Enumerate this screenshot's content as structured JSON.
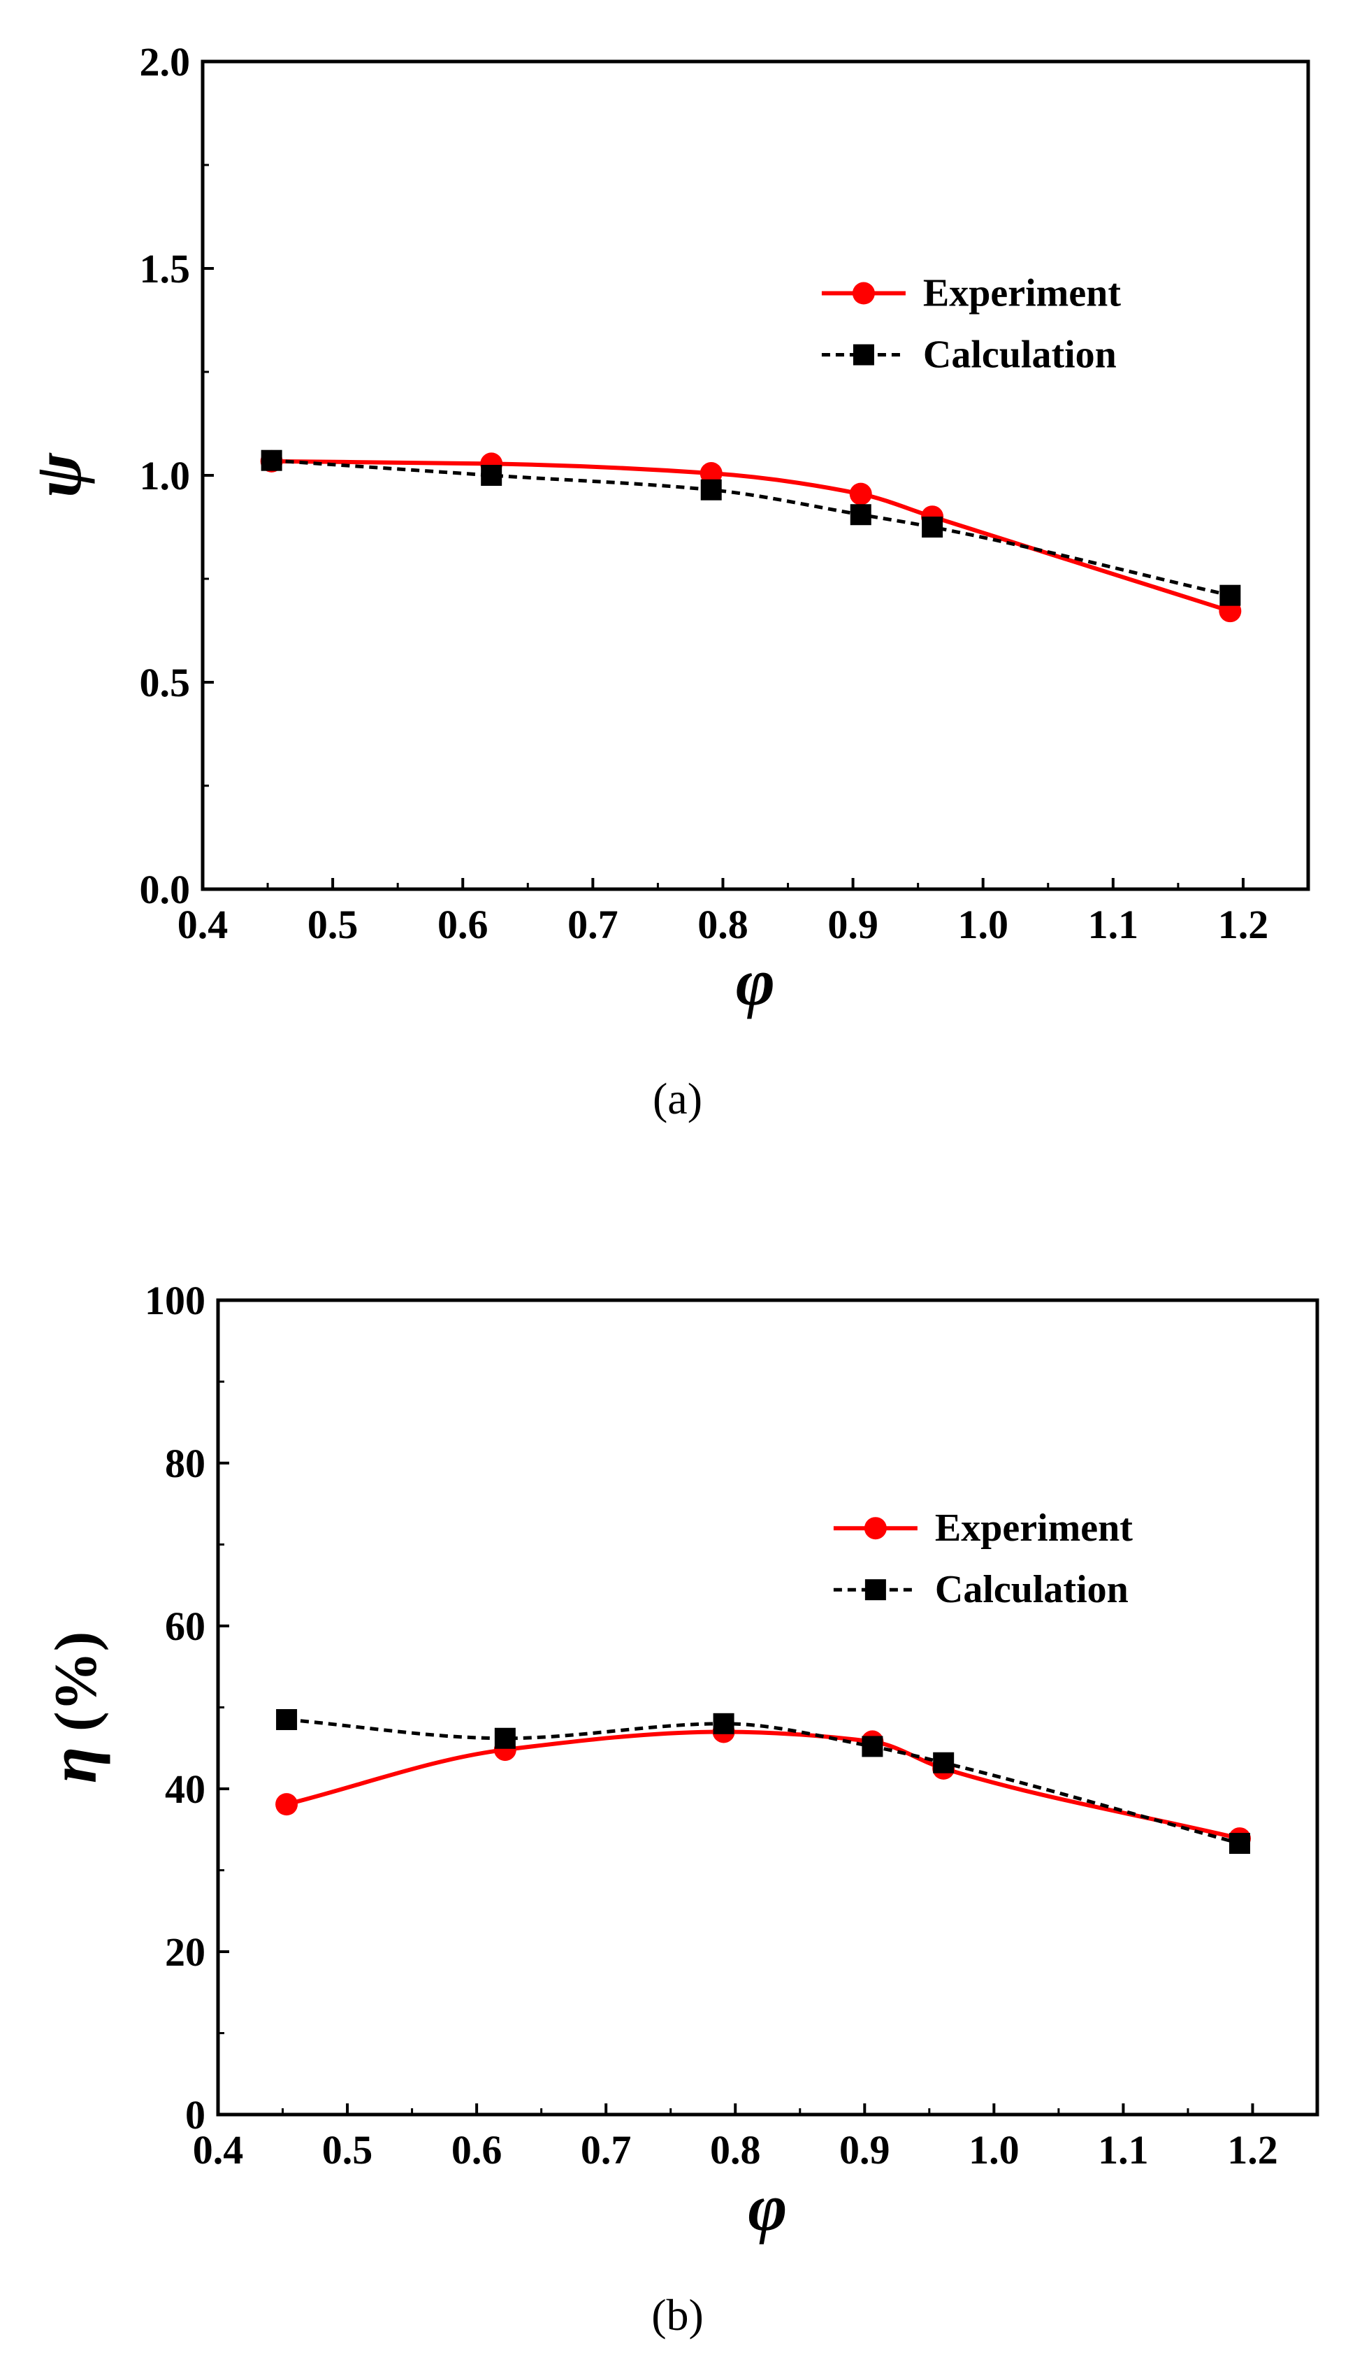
{
  "chart_data": [
    {
      "type": "line",
      "panel": "a",
      "caption": "(a)",
      "title": "",
      "xlabel": "φ",
      "ylabel": "ψ",
      "ylabel_unit": "",
      "xlim": [
        0.4,
        1.25
      ],
      "ylim": [
        0.0,
        2.0
      ],
      "xticks": [
        "0.4",
        "0.5",
        "0.6",
        "0.7",
        "0.8",
        "0.9",
        "1.0",
        "1.1",
        "1.2"
      ],
      "yticks": [
        "0.0",
        "0.5",
        "1.0",
        "1.5",
        "2.0"
      ],
      "legend_position": "upper-right",
      "series": [
        {
          "name": "Experiment",
          "color": "#ff0000",
          "marker": "circle",
          "line": "solid",
          "x": [
            0.453,
            0.622,
            0.791,
            0.906,
            0.961,
            1.19
          ],
          "y": [
            1.034,
            1.028,
            1.005,
            0.955,
            0.9,
            0.672
          ]
        },
        {
          "name": "Calculation",
          "color": "#000000",
          "marker": "square",
          "line": "dashed",
          "x": [
            0.453,
            0.622,
            0.791,
            0.906,
            0.961,
            1.19
          ],
          "y": [
            1.036,
            1.0,
            0.965,
            0.905,
            0.875,
            0.71
          ]
        }
      ]
    },
    {
      "type": "line",
      "panel": "b",
      "caption": "(b)",
      "title": "",
      "xlabel": "φ",
      "ylabel": "η",
      "ylabel_unit": "(%)",
      "xlim": [
        0.4,
        1.25
      ],
      "ylim": [
        0,
        100
      ],
      "xticks": [
        "0.4",
        "0.5",
        "0.6",
        "0.7",
        "0.8",
        "0.9",
        "1.0",
        "1.1",
        "1.2"
      ],
      "yticks": [
        "0",
        "20",
        "40",
        "60",
        "80",
        "100"
      ],
      "legend_position": "upper-right",
      "series": [
        {
          "name": "Experiment",
          "color": "#ff0000",
          "marker": "circle",
          "line": "solid",
          "x": [
            0.453,
            0.622,
            0.791,
            0.906,
            0.961,
            1.19
          ],
          "y": [
            38.1,
            44.8,
            47.0,
            45.8,
            42.5,
            33.9
          ]
        },
        {
          "name": "Calculation",
          "color": "#000000",
          "marker": "square",
          "line": "dashed",
          "x": [
            0.453,
            0.622,
            0.791,
            0.906,
            0.961,
            1.19
          ],
          "y": [
            48.5,
            46.2,
            48.0,
            45.2,
            43.2,
            33.3
          ]
        }
      ]
    }
  ]
}
